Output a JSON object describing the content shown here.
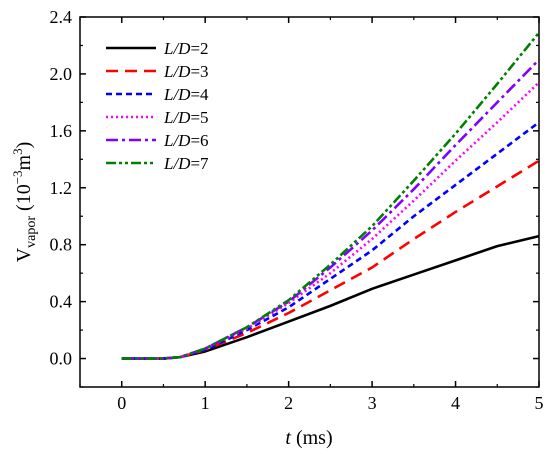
{
  "chart_data": {
    "type": "line",
    "xlabel": {
      "italic": "t",
      "rest": " (ms)"
    },
    "ylabel": {
      "main": "V",
      "sub": "vapor",
      "rest_open": " (10",
      "exp1": "−3",
      "unit": "m",
      "exp2": "3",
      "rest_close": ")"
    },
    "xlim": [
      -0.5,
      5
    ],
    "ylim": [
      -0.2,
      2.4
    ],
    "xticks": [
      0,
      1,
      2,
      3,
      4,
      5
    ],
    "yticks": [
      0.0,
      0.4,
      0.8,
      1.2,
      1.6,
      2.0,
      2.4
    ],
    "ytick_labels": [
      "0.0",
      "0.4",
      "0.8",
      "1.2",
      "1.6",
      "2.0",
      "2.4"
    ],
    "grid": false,
    "legend_position": "top-left",
    "x": [
      0,
      0.5,
      0.7,
      1.0,
      1.5,
      2.0,
      2.5,
      3.0,
      3.5,
      4.0,
      4.5,
      5.0
    ],
    "series": [
      {
        "name": "L/D=2",
        "name_italic": "L/D",
        "name_rest": "=2",
        "color": "#000000",
        "dash": "solid",
        "values": [
          0.0,
          0.0,
          0.01,
          0.05,
          0.15,
          0.26,
          0.37,
          0.49,
          0.59,
          0.69,
          0.79,
          0.86
        ]
      },
      {
        "name": "L/D=3",
        "name_italic": "L/D",
        "name_rest": "=3",
        "color": "#ff0000",
        "dash": "dash",
        "values": [
          0.0,
          0.0,
          0.01,
          0.06,
          0.18,
          0.32,
          0.48,
          0.64,
          0.84,
          1.03,
          1.21,
          1.39
        ]
      },
      {
        "name": "L/D=4",
        "name_italic": "L/D",
        "name_rest": "=4",
        "color": "#0000ff",
        "dash": "shortdash",
        "values": [
          0.0,
          0.0,
          0.01,
          0.06,
          0.2,
          0.36,
          0.56,
          0.76,
          1.0,
          1.22,
          1.44,
          1.66
        ]
      },
      {
        "name": "L/D=5",
        "name_italic": "L/D",
        "name_rest": "=5",
        "color": "#ff00ff",
        "dash": "dot",
        "values": [
          0.0,
          0.0,
          0.01,
          0.07,
          0.21,
          0.39,
          0.6,
          0.84,
          1.11,
          1.39,
          1.66,
          1.94
        ]
      },
      {
        "name": "L/D=6",
        "name_italic": "L/D",
        "name_rest": "=6",
        "color": "#8000ff",
        "dash": "dashdot",
        "values": [
          0.0,
          0.0,
          0.01,
          0.07,
          0.22,
          0.4,
          0.64,
          0.9,
          1.19,
          1.5,
          1.8,
          2.1
        ]
      },
      {
        "name": "L/D=7",
        "name_italic": "L/D",
        "name_rest": "=7",
        "color": "#008000",
        "dash": "dashdotdot",
        "values": [
          0.0,
          0.0,
          0.01,
          0.07,
          0.22,
          0.41,
          0.66,
          0.93,
          1.25,
          1.58,
          1.93,
          2.29
        ]
      }
    ]
  }
}
